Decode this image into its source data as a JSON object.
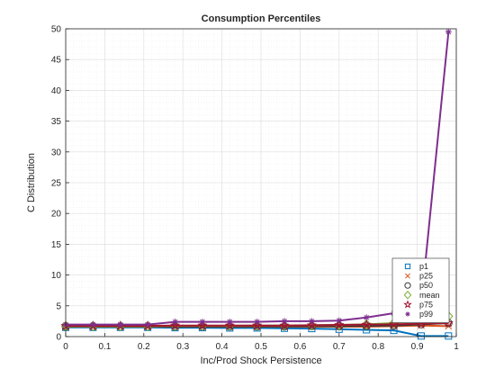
{
  "chart_data": {
    "type": "line",
    "title": "Consumption Percentiles",
    "xlabel": "Inc/Prod Shock Persistence",
    "ylabel": "C Distribution",
    "xlim": [
      0,
      1
    ],
    "ylim": [
      0,
      50
    ],
    "xticks": [
      0,
      0.1,
      0.2,
      0.3,
      0.4,
      0.5,
      0.6,
      0.7,
      0.8,
      0.9,
      1
    ],
    "yticks": [
      0,
      5,
      10,
      15,
      20,
      25,
      30,
      35,
      40,
      45,
      50
    ],
    "grid": true,
    "minor_grid": true,
    "legend_position": "bottom-right",
    "x": [
      0,
      0.07,
      0.14,
      0.21,
      0.28,
      0.35,
      0.42,
      0.49,
      0.56,
      0.63,
      0.7,
      0.77,
      0.84,
      0.91,
      0.98
    ],
    "series": [
      {
        "name": "p1",
        "color": "#0072BD",
        "marker": "square",
        "values": [
          1.5,
          1.5,
          1.5,
          1.5,
          1.45,
          1.45,
          1.4,
          1.4,
          1.35,
          1.3,
          1.2,
          1.1,
          1.0,
          0.1,
          0.1
        ]
      },
      {
        "name": "p25",
        "color": "#D95319",
        "marker": "x",
        "values": [
          1.6,
          1.6,
          1.6,
          1.6,
          1.6,
          1.6,
          1.6,
          1.6,
          1.6,
          1.6,
          1.6,
          1.6,
          1.7,
          1.8,
          1.7
        ]
      },
      {
        "name": "p50",
        "color": "#3a3a3a",
        "marker": "circle",
        "values": [
          1.65,
          1.65,
          1.65,
          1.65,
          1.65,
          1.65,
          1.65,
          1.65,
          1.65,
          1.7,
          1.7,
          1.75,
          1.8,
          2.0,
          2.2
        ]
      },
      {
        "name": "mean",
        "color": "#77AC30",
        "marker": "diamond",
        "values": [
          1.7,
          1.7,
          1.7,
          1.7,
          1.75,
          1.75,
          1.75,
          1.8,
          1.8,
          1.85,
          1.9,
          2.0,
          2.2,
          2.6,
          3.3
        ]
      },
      {
        "name": "p75",
        "color": "#A2142F",
        "marker": "pentagram",
        "values": [
          1.75,
          1.75,
          1.75,
          1.75,
          1.8,
          1.8,
          1.8,
          1.8,
          1.8,
          1.85,
          1.9,
          1.95,
          2.0,
          2.1,
          2.2
        ]
      },
      {
        "name": "p99",
        "color": "#7E2F8E",
        "marker": "asterisk",
        "values": [
          1.95,
          1.95,
          1.95,
          1.95,
          2.4,
          2.4,
          2.4,
          2.4,
          2.5,
          2.5,
          2.6,
          3.1,
          3.8,
          5.2,
          49.5
        ]
      }
    ]
  }
}
